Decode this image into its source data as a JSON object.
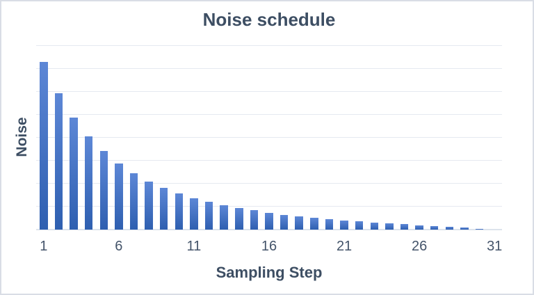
{
  "chart_data": {
    "type": "bar",
    "title": "Noise schedule",
    "xlabel": "Sampling Step",
    "ylabel": "Noise",
    "categories": [
      1,
      2,
      3,
      4,
      5,
      6,
      7,
      8,
      9,
      10,
      11,
      12,
      13,
      14,
      15,
      16,
      17,
      18,
      19,
      20,
      21,
      22,
      23,
      24,
      25,
      26,
      27,
      28,
      29,
      30,
      31
    ],
    "values": [
      7.3,
      5.95,
      4.88,
      4.06,
      3.42,
      2.88,
      2.46,
      2.08,
      1.82,
      1.57,
      1.37,
      1.2,
      1.07,
      0.95,
      0.85,
      0.74,
      0.65,
      0.59,
      0.52,
      0.46,
      0.38,
      0.35,
      0.31,
      0.27,
      0.23,
      0.19,
      0.14,
      0.12,
      0.08,
      0.02,
      0
    ],
    "x_tick_labels": [
      "1",
      "6",
      "11",
      "16",
      "21",
      "26",
      "31"
    ],
    "x_tick_positions": [
      1,
      6,
      11,
      16,
      21,
      26,
      31
    ],
    "ylim": [
      0,
      8
    ],
    "y_gridline_interval": 1,
    "y_tick_labels_visible": false,
    "grid": "horizontal",
    "legend": "none",
    "colors": {
      "bar_gradient_top": "#5d87d6",
      "bar_gradient_bottom": "#2e5fb0",
      "gridline": "#e5e9f0",
      "axis_line": "#dde3ec",
      "text": "#3d4e63",
      "tick_text": "#44546a",
      "background": "#ffffff",
      "frame_border": "#d9dde5"
    }
  }
}
